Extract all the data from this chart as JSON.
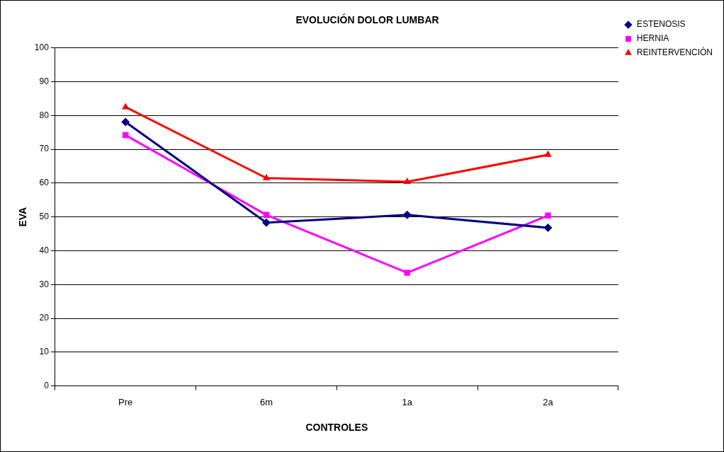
{
  "chart_data": {
    "type": "line",
    "title": "EVOLUCIÓN DOLOR LUMBAR",
    "xlabel": "CONTROLES",
    "ylabel": "EVA",
    "categories": [
      "Pre",
      "6m",
      "1a",
      "2a"
    ],
    "series": [
      {
        "name": "ESTENOSIS",
        "color": "#000080",
        "marker": "diamond",
        "values": [
          78.1,
          48.3,
          50.6,
          46.8
        ]
      },
      {
        "name": "HERNIA",
        "color": "#ff00ff",
        "marker": "square",
        "values": [
          74.2,
          50.6,
          33.5,
          50.4
        ]
      },
      {
        "name": "REINTERVENCIÓN",
        "color": "#ff0000",
        "marker": "triangle",
        "values": [
          82.5,
          61.5,
          60.4,
          68.4
        ]
      }
    ],
    "ylim": [
      0,
      100
    ],
    "yticks": [
      0,
      10,
      20,
      30,
      40,
      50,
      60,
      70,
      80,
      90,
      100
    ],
    "grid": "y",
    "legend": "right"
  }
}
